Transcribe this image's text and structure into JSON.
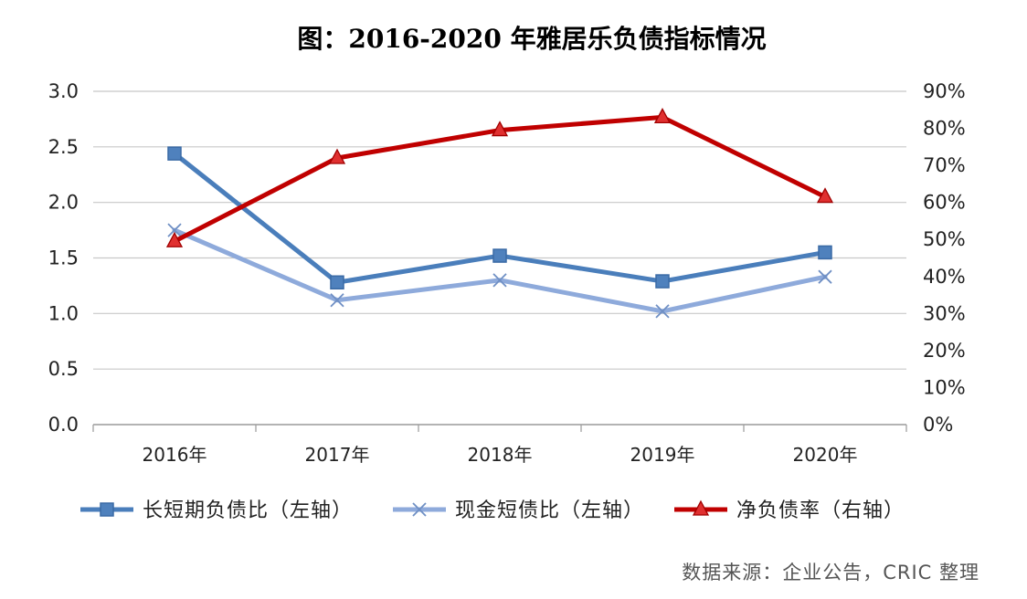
{
  "chart_data": {
    "type": "line",
    "title": "图：2016-2020 年雅居乐负债指标情况",
    "categories": [
      "2016年",
      "2017年",
      "2018年",
      "2019年",
      "2020年"
    ],
    "y_left": {
      "ticks": [
        "0.0",
        "0.5",
        "1.0",
        "1.5",
        "2.0",
        "2.5",
        "3.0"
      ],
      "ylim": [
        0,
        3
      ]
    },
    "y_right": {
      "ticks": [
        "0%",
        "10%",
        "20%",
        "30%",
        "40%",
        "50%",
        "60%",
        "70%",
        "80%",
        "90%"
      ],
      "ylim": [
        0,
        0.9
      ]
    },
    "grid": true,
    "legend_position": "bottom",
    "series": [
      {
        "name": "长短期负债比（左轴）",
        "axis": "left",
        "marker": "square",
        "color": "#4a7ebb",
        "values": [
          2.44,
          1.28,
          1.52,
          1.29,
          1.55
        ]
      },
      {
        "name": "现金短债比（左轴）",
        "axis": "left",
        "marker": "x",
        "color": "#8eaadb",
        "values": [
          1.75,
          1.12,
          1.3,
          1.02,
          1.33
        ]
      },
      {
        "name": "净负债率（右轴）",
        "axis": "right",
        "marker": "triangle",
        "color": "#c00000",
        "values": [
          0.495,
          0.72,
          0.795,
          0.83,
          0.615
        ]
      }
    ],
    "source": "数据来源：企业公告，CRIC 整理"
  }
}
